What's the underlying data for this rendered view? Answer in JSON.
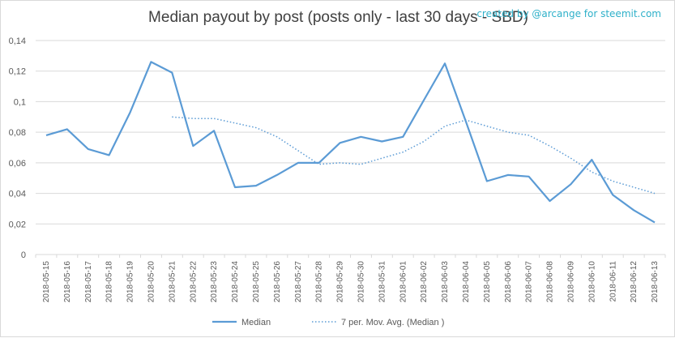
{
  "credit": "created by @arcange for steemit.com",
  "chart_data": {
    "type": "line",
    "title": "Median payout by post (posts only - last 30 days - SBD)",
    "x": [
      "2018-05-15",
      "2018-05-16",
      "2018-05-17",
      "2018-05-18",
      "2018-05-19",
      "2018-05-20",
      "2018-05-21",
      "2018-05-22",
      "2018-05-23",
      "2018-05-24",
      "2018-05-25",
      "2018-05-26",
      "2018-05-27",
      "2018-05-28",
      "2018-05-29",
      "2018-05-30",
      "2018-05-31",
      "2018-06-01",
      "2018-06-02",
      "2018-06-03",
      "2018-06-04",
      "2018-06-05",
      "2018-06-06",
      "2018-06-07",
      "2018-06-08",
      "2018-06-09",
      "2018-06-10",
      "2018-06-11",
      "2018-06-12",
      "2018-06-13"
    ],
    "ylim": [
      0,
      0.14
    ],
    "yticks": [
      0,
      0.02,
      0.04,
      0.06,
      0.08,
      0.1,
      0.12,
      0.14
    ],
    "ytick_labels": [
      "0",
      "0,02",
      "0,04",
      "0,06",
      "0,08",
      "0,1",
      "0,12",
      "0,14"
    ],
    "grid": true,
    "legend": "bottom",
    "series": [
      {
        "name": "Median",
        "color": "#5b9bd5",
        "style": "solid",
        "values": [
          0.078,
          0.082,
          0.069,
          0.065,
          0.093,
          0.126,
          0.119,
          0.071,
          0.081,
          0.044,
          0.045,
          0.052,
          0.06,
          0.06,
          0.073,
          0.077,
          0.074,
          0.077,
          0.101,
          0.125,
          0.087,
          0.048,
          0.052,
          0.051,
          0.035,
          0.046,
          0.062,
          0.039,
          0.029,
          0.021
        ]
      },
      {
        "name": "7 per. Mov. Avg. (Median )",
        "color": "#5b9bd5",
        "style": "dotted",
        "values": [
          null,
          null,
          null,
          null,
          null,
          null,
          0.09,
          0.089,
          0.089,
          0.086,
          0.083,
          0.077,
          0.068,
          0.059,
          0.06,
          0.059,
          0.063,
          0.067,
          0.074,
          0.084,
          0.088,
          0.084,
          0.08,
          0.078,
          0.071,
          0.063,
          0.054,
          0.048,
          0.044,
          0.04
        ]
      }
    ]
  }
}
